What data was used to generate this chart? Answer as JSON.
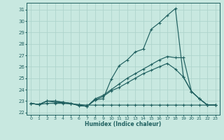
{
  "title": "",
  "xlabel": "Humidex (Indice chaleur)",
  "xlim": [
    -0.5,
    23.5
  ],
  "ylim": [
    21.8,
    31.6
  ],
  "yticks": [
    22,
    23,
    24,
    25,
    26,
    27,
    28,
    29,
    30,
    31
  ],
  "xticks": [
    0,
    1,
    2,
    3,
    4,
    5,
    6,
    7,
    8,
    9,
    10,
    11,
    12,
    13,
    14,
    15,
    16,
    17,
    18,
    19,
    20,
    21,
    22,
    23
  ],
  "background_color": "#c8e8e0",
  "grid_color": "#aed4cc",
  "line_color": "#206060",
  "series": [
    {
      "x": [
        0,
        1,
        2,
        3,
        4,
        5,
        6,
        7,
        8,
        9,
        10,
        11,
        12,
        13,
        14,
        15,
        16,
        17,
        18,
        19,
        20,
        21,
        22,
        23
      ],
      "y": [
        22.8,
        22.7,
        23.0,
        23.0,
        22.9,
        22.8,
        22.6,
        22.55,
        23.1,
        23.2,
        24.9,
        26.1,
        26.6,
        27.3,
        27.55,
        29.3,
        29.85,
        30.5,
        31.1,
        25.1,
        23.85,
        23.2,
        22.65,
        22.65
      ]
    },
    {
      "x": [
        0,
        1,
        2,
        3,
        4,
        5,
        6,
        7,
        8,
        9,
        10,
        11,
        12,
        13,
        14,
        15,
        16,
        17,
        18,
        19,
        20,
        21,
        22,
        23
      ],
      "y": [
        22.8,
        22.7,
        23.0,
        23.0,
        22.9,
        22.8,
        22.6,
        22.55,
        23.2,
        23.5,
        24.0,
        24.5,
        25.0,
        25.4,
        25.8,
        26.2,
        26.6,
        26.9,
        26.8,
        26.8,
        23.85,
        23.2,
        22.65,
        22.65
      ]
    },
    {
      "x": [
        0,
        1,
        2,
        3,
        4,
        5,
        6,
        7,
        8,
        9,
        10,
        11,
        12,
        13,
        14,
        15,
        16,
        17,
        18,
        19,
        20,
        21,
        22,
        23
      ],
      "y": [
        22.8,
        22.7,
        22.8,
        22.8,
        22.8,
        22.75,
        22.7,
        22.65,
        22.65,
        22.65,
        22.65,
        22.65,
        22.65,
        22.65,
        22.65,
        22.65,
        22.65,
        22.65,
        22.65,
        22.65,
        22.65,
        22.65,
        22.65,
        22.65
      ]
    },
    {
      "x": [
        0,
        1,
        2,
        3,
        4,
        5,
        6,
        7,
        8,
        9,
        10,
        11,
        12,
        13,
        14,
        15,
        16,
        17,
        18,
        19,
        20,
        21,
        22,
        23
      ],
      "y": [
        22.8,
        22.7,
        23.0,
        22.9,
        22.85,
        22.8,
        22.65,
        22.55,
        23.1,
        23.4,
        23.9,
        24.2,
        24.6,
        25.0,
        25.4,
        25.7,
        26.0,
        26.3,
        25.8,
        25.1,
        23.85,
        23.2,
        22.65,
        22.65
      ]
    }
  ]
}
